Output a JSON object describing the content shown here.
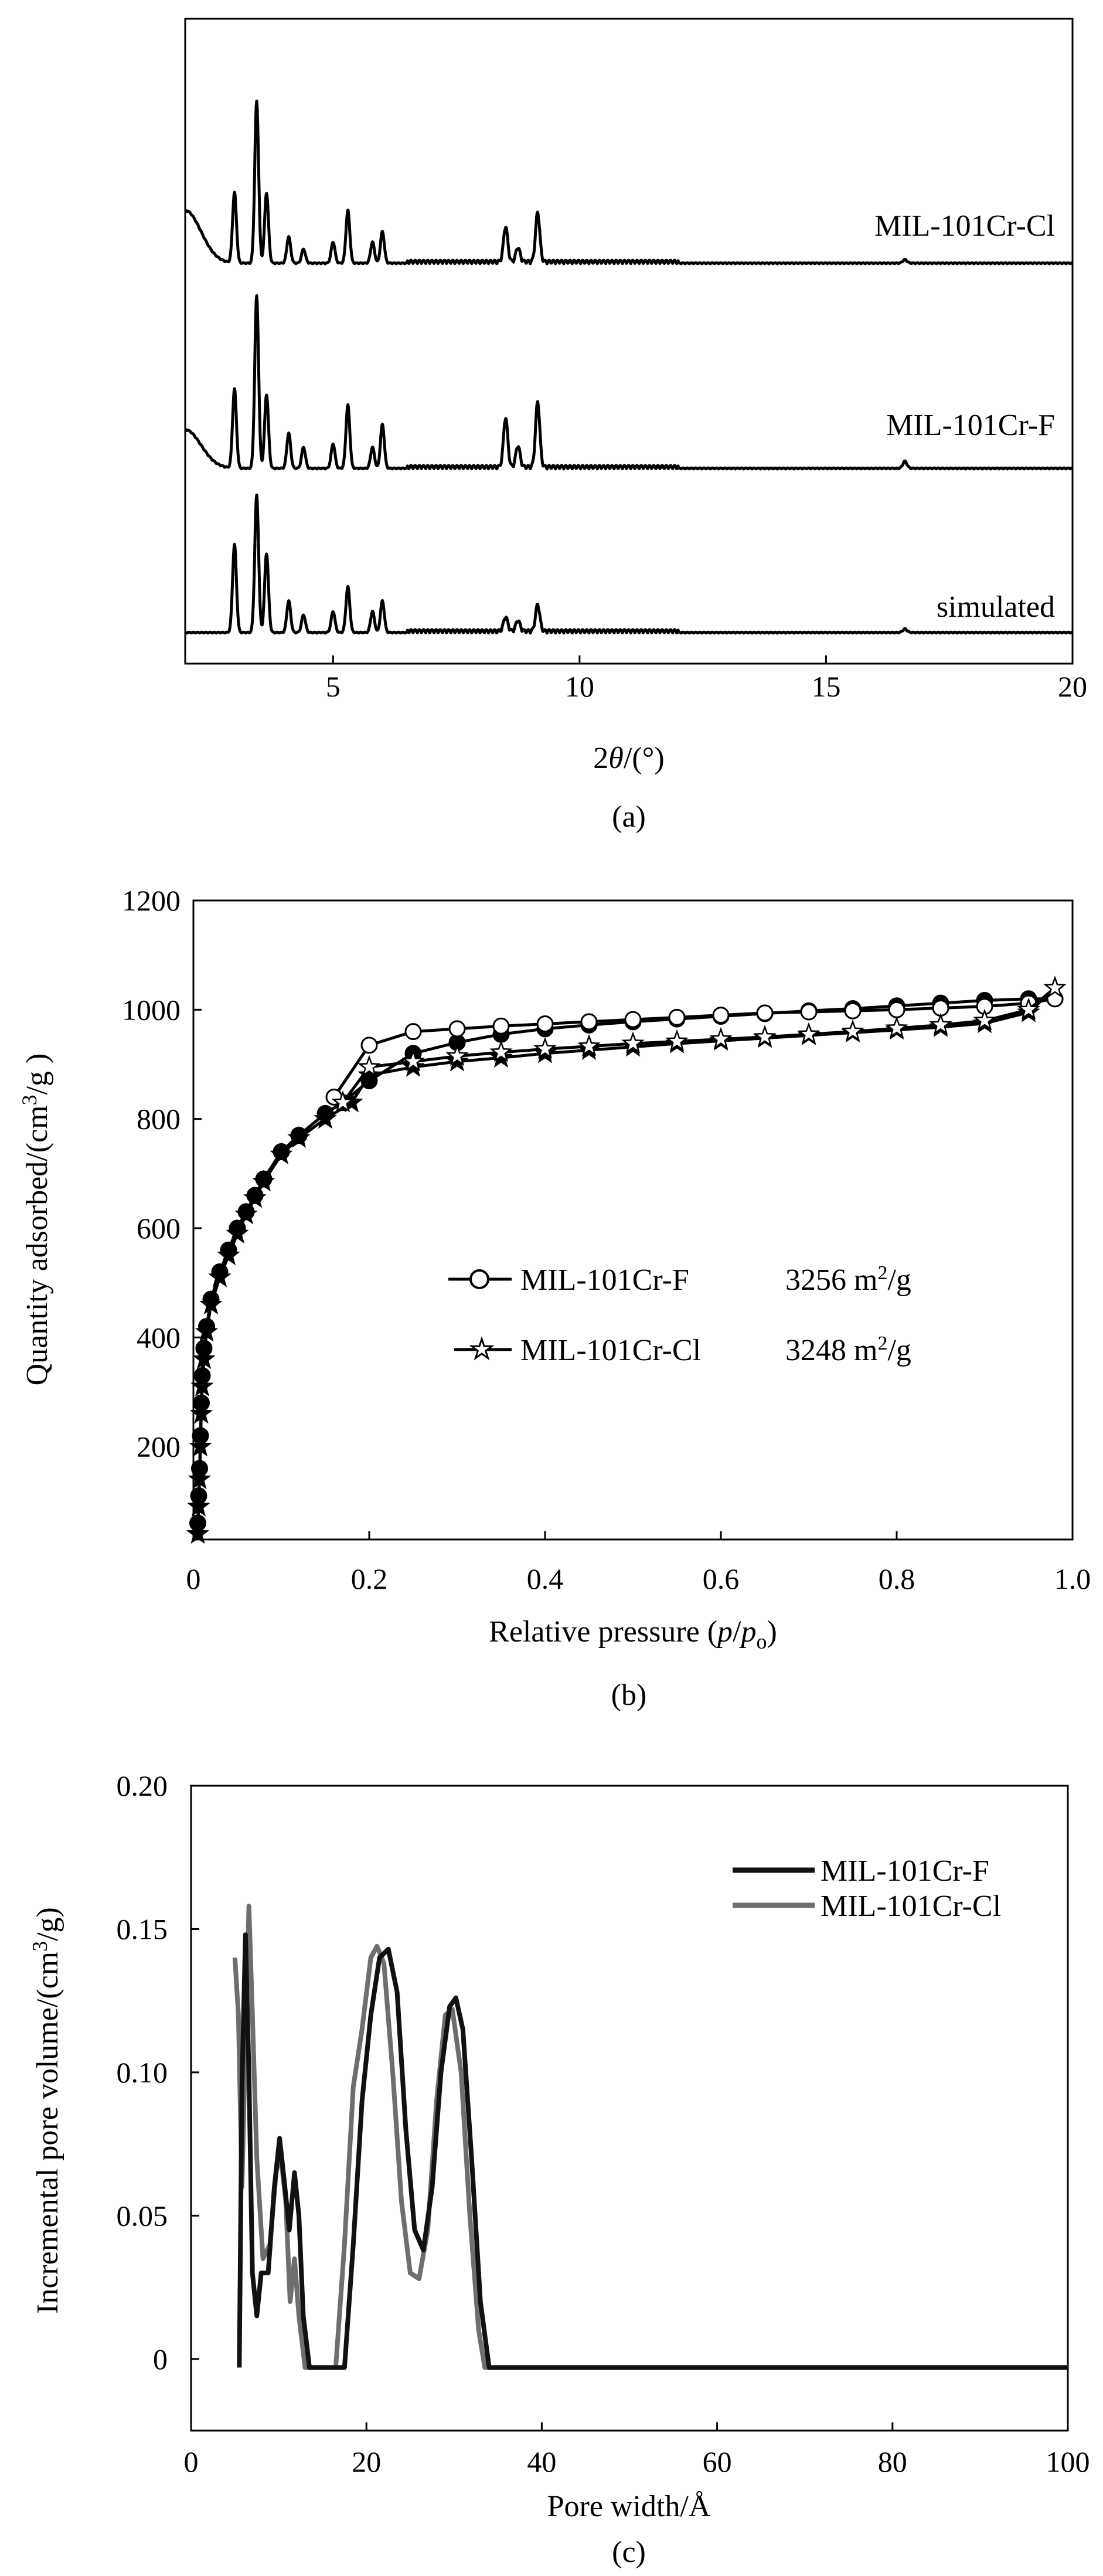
{
  "chart_data": [
    {
      "panel": "a",
      "type": "line",
      "caption": "(a)",
      "xlabel_prefix": "2",
      "xlabel_var": "θ",
      "xlabel_unit": "/(°)",
      "ylabel": "",
      "xlim": [
        2,
        20
      ],
      "x_ticks": [
        "5",
        "10",
        "15",
        "20"
      ],
      "peaks": [
        3.0,
        3.45,
        3.65,
        4.1,
        4.4,
        5.0,
        5.3,
        5.8,
        6.0,
        8.5,
        8.75,
        9.15,
        16.6
      ],
      "series": [
        {
          "name": "simulated",
          "label": "simulated",
          "scale": 1.0,
          "lowangle_hump": 0.0,
          "heights": [
            0.5,
            0.78,
            0.45,
            0.18,
            0.1,
            0.12,
            0.26,
            0.12,
            0.18,
            0.08,
            0.06,
            0.15,
            0.02
          ]
        },
        {
          "name": "MIL-101Cr-F",
          "label": "MIL-101Cr-F",
          "scale": 1.0,
          "lowangle_hump": 0.22,
          "heights": [
            0.45,
            0.98,
            0.42,
            0.2,
            0.12,
            0.14,
            0.36,
            0.12,
            0.25,
            0.28,
            0.12,
            0.37,
            0.04
          ]
        },
        {
          "name": "MIL-101Cr-Cl",
          "label": "MIL-101Cr-Cl",
          "scale": 1.0,
          "lowangle_hump": 0.3,
          "heights": [
            0.4,
            0.92,
            0.4,
            0.15,
            0.08,
            0.12,
            0.3,
            0.12,
            0.18,
            0.2,
            0.08,
            0.28,
            0.02
          ]
        }
      ]
    },
    {
      "panel": "b",
      "type": "line",
      "caption": "(b)",
      "xlabel_text": "Relative pressure (",
      "xlabel_var": "p",
      "xlabel_sep": "/",
      "xlabel_var2": "p",
      "xlabel_sub": "o",
      "xlabel_close": ")",
      "ylabel_text": "Quantity adsorbed/(cm",
      "ylabel_sup": "3",
      "ylabel_close": "/g )",
      "xlim": [
        0,
        1.0
      ],
      "ylim": [
        30,
        1200
      ],
      "x_ticks": [
        "0",
        "0.2",
        "0.4",
        "0.6",
        "0.8",
        "1.0"
      ],
      "y_ticks": [
        "200",
        "400",
        "600",
        "800",
        "1000",
        "1200"
      ],
      "series": [
        {
          "name": "MIL-101Cr-F",
          "marker": "circle",
          "area": "3256 m",
          "area_sup": "2",
          "area_unit": "/g",
          "adsorption": [
            [
              0.005,
              60
            ],
            [
              0.006,
              110
            ],
            [
              0.007,
              160
            ],
            [
              0.008,
              220
            ],
            [
              0.009,
              280
            ],
            [
              0.01,
              330
            ],
            [
              0.012,
              380
            ],
            [
              0.015,
              420
            ],
            [
              0.02,
              470
            ],
            [
              0.03,
              520
            ],
            [
              0.04,
              560
            ],
            [
              0.05,
              600
            ],
            [
              0.06,
              630
            ],
            [
              0.07,
              660
            ],
            [
              0.08,
              690
            ],
            [
              0.1,
              740
            ],
            [
              0.12,
              770
            ],
            [
              0.15,
              810
            ],
            [
              0.17,
              830
            ],
            [
              0.2,
              870
            ],
            [
              0.25,
              920
            ],
            [
              0.3,
              940
            ],
            [
              0.35,
              955
            ],
            [
              0.4,
              965
            ],
            [
              0.45,
              972
            ],
            [
              0.5,
              978
            ],
            [
              0.55,
              983
            ],
            [
              0.6,
              988
            ],
            [
              0.65,
              993
            ],
            [
              0.7,
              998
            ],
            [
              0.75,
              1002
            ],
            [
              0.8,
              1007
            ],
            [
              0.85,
              1012
            ],
            [
              0.9,
              1017
            ],
            [
              0.95,
              1020
            ],
            [
              0.98,
              1020
            ]
          ],
          "desorption": [
            [
              0.98,
              1020
            ],
            [
              0.95,
              1012
            ],
            [
              0.9,
              1006
            ],
            [
              0.85,
              1003
            ],
            [
              0.8,
              1000
            ],
            [
              0.75,
              998
            ],
            [
              0.7,
              996
            ],
            [
              0.65,
              994
            ],
            [
              0.6,
              990
            ],
            [
              0.55,
              986
            ],
            [
              0.5,
              982
            ],
            [
              0.45,
              978
            ],
            [
              0.4,
              974
            ],
            [
              0.35,
              970
            ],
            [
              0.3,
              965
            ],
            [
              0.25,
              960
            ],
            [
              0.2,
              935
            ],
            [
              0.16,
              840
            ]
          ]
        },
        {
          "name": "MIL-101Cr-Cl",
          "marker": "star",
          "area": "3248 m",
          "area_sup": "2",
          "area_unit": "/g",
          "adsorption": [
            [
              0.005,
              40
            ],
            [
              0.006,
              90
            ],
            [
              0.007,
              140
            ],
            [
              0.008,
              200
            ],
            [
              0.009,
              260
            ],
            [
              0.01,
              310
            ],
            [
              0.012,
              360
            ],
            [
              0.015,
              410
            ],
            [
              0.02,
              460
            ],
            [
              0.03,
              510
            ],
            [
              0.04,
              550
            ],
            [
              0.05,
              590
            ],
            [
              0.06,
              625
            ],
            [
              0.07,
              655
            ],
            [
              0.08,
              685
            ],
            [
              0.1,
              735
            ],
            [
              0.12,
              765
            ],
            [
              0.15,
              800
            ],
            [
              0.18,
              830
            ],
            [
              0.2,
              880
            ],
            [
              0.25,
              895
            ],
            [
              0.3,
              905
            ],
            [
              0.35,
              912
            ],
            [
              0.4,
              920
            ],
            [
              0.45,
              926
            ],
            [
              0.5,
              932
            ],
            [
              0.55,
              938
            ],
            [
              0.6,
              943
            ],
            [
              0.65,
              948
            ],
            [
              0.7,
              953
            ],
            [
              0.75,
              958
            ],
            [
              0.8,
              963
            ],
            [
              0.85,
              968
            ],
            [
              0.9,
              975
            ],
            [
              0.95,
              995
            ],
            [
              0.98,
              1040
            ]
          ],
          "desorption": [
            [
              0.98,
              1040
            ],
            [
              0.95,
              1000
            ],
            [
              0.9,
              980
            ],
            [
              0.85,
              972
            ],
            [
              0.8,
              966
            ],
            [
              0.75,
              960
            ],
            [
              0.7,
              955
            ],
            [
              0.65,
              950
            ],
            [
              0.6,
              946
            ],
            [
              0.55,
              942
            ],
            [
              0.5,
              938
            ],
            [
              0.45,
              933
            ],
            [
              0.4,
              928
            ],
            [
              0.35,
              922
            ],
            [
              0.3,
              915
            ],
            [
              0.25,
              905
            ],
            [
              0.2,
              895
            ],
            [
              0.17,
              830
            ]
          ]
        }
      ]
    },
    {
      "panel": "c",
      "type": "line",
      "caption": "(c)",
      "xlabel": "Pore width/Å",
      "ylabel_text": "Incremental pore volume/(cm",
      "ylabel_sup": "3",
      "ylabel_close": "/g)",
      "xlim": [
        0,
        100
      ],
      "ylim": [
        -0.025,
        0.2
      ],
      "x_ticks": [
        "0",
        "20",
        "40",
        "60",
        "80",
        "100"
      ],
      "y_ticks": [
        "0",
        "0.05",
        "0.10",
        "0.15",
        "0.20"
      ],
      "y_tick_values": [
        0,
        0.05,
        0.1,
        0.15,
        0.2
      ],
      "x_tick_values": [
        0,
        20,
        40,
        60,
        80,
        100
      ],
      "series": [
        {
          "name": "MIL-101Cr-F",
          "color": "#111111",
          "points": [
            [
              5.5,
              -0.003
            ],
            [
              5.8,
              0.095
            ],
            [
              6.2,
              0.148
            ],
            [
              6.6,
              0.1
            ],
            [
              7.0,
              0.03
            ],
            [
              7.5,
              0.015
            ],
            [
              8.0,
              0.03
            ],
            [
              8.8,
              0.03
            ],
            [
              9.5,
              0.06
            ],
            [
              10.1,
              0.077
            ],
            [
              10.7,
              0.06
            ],
            [
              11.2,
              0.045
            ],
            [
              11.8,
              0.065
            ],
            [
              12.3,
              0.05
            ],
            [
              12.8,
              0.015
            ],
            [
              13.5,
              -0.003
            ],
            [
              17.5,
              -0.003
            ],
            [
              18.5,
              0.04
            ],
            [
              19.5,
              0.09
            ],
            [
              20.5,
              0.12
            ],
            [
              21.5,
              0.14
            ],
            [
              22.5,
              0.143
            ],
            [
              23.5,
              0.128
            ],
            [
              24.5,
              0.08
            ],
            [
              25.5,
              0.045
            ],
            [
              26.5,
              0.038
            ],
            [
              27.5,
              0.06
            ],
            [
              28.5,
              0.1
            ],
            [
              29.5,
              0.123
            ],
            [
              30.2,
              0.126
            ],
            [
              31,
              0.115
            ],
            [
              32,
              0.07
            ],
            [
              33,
              0.02
            ],
            [
              34,
              -0.003
            ],
            [
              100,
              -0.003
            ]
          ]
        },
        {
          "name": "MIL-101Cr-Cl",
          "color": "#6e6e6e",
          "points": [
            [
              5.0,
              0.14
            ],
            [
              5.4,
              0.12
            ],
            [
              5.8,
              0.06
            ],
            [
              6.2,
              0.11
            ],
            [
              6.6,
              0.158
            ],
            [
              7.0,
              0.12
            ],
            [
              7.5,
              0.07
            ],
            [
              8.2,
              0.035
            ],
            [
              9.0,
              0.04
            ],
            [
              9.7,
              0.065
            ],
            [
              10.2,
              0.072
            ],
            [
              10.8,
              0.055
            ],
            [
              11.3,
              0.02
            ],
            [
              11.8,
              0.035
            ],
            [
              12.3,
              0.015
            ],
            [
              13,
              -0.003
            ],
            [
              16.5,
              -0.003
            ],
            [
              17.5,
              0.04
            ],
            [
              18.5,
              0.095
            ],
            [
              19.5,
              0.115
            ],
            [
              20.5,
              0.14
            ],
            [
              21.2,
              0.144
            ],
            [
              22,
              0.138
            ],
            [
              23,
              0.1
            ],
            [
              24,
              0.055
            ],
            [
              25,
              0.03
            ],
            [
              26,
              0.028
            ],
            [
              27,
              0.045
            ],
            [
              28,
              0.09
            ],
            [
              29,
              0.12
            ],
            [
              29.8,
              0.122
            ],
            [
              30.8,
              0.1
            ],
            [
              31.8,
              0.05
            ],
            [
              32.8,
              0.01
            ],
            [
              33.5,
              -0.003
            ],
            [
              100,
              -0.003
            ]
          ]
        }
      ]
    }
  ]
}
